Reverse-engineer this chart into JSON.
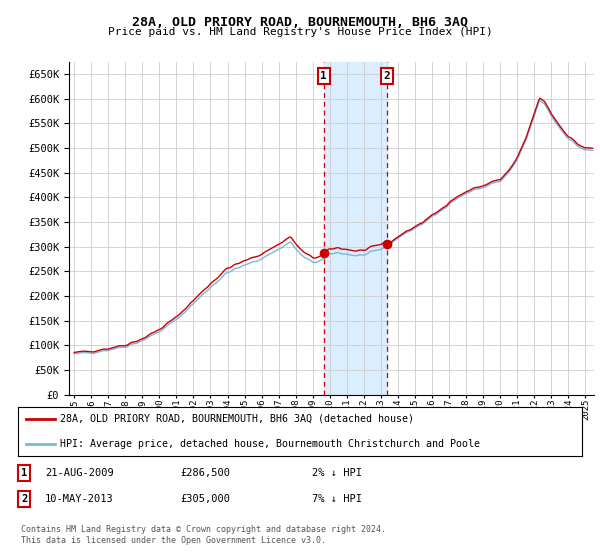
{
  "title": "28A, OLD PRIORY ROAD, BOURNEMOUTH, BH6 3AQ",
  "subtitle": "Price paid vs. HM Land Registry's House Price Index (HPI)",
  "ylim": [
    0,
    675000
  ],
  "ytick_values": [
    0,
    50000,
    100000,
    150000,
    200000,
    250000,
    300000,
    350000,
    400000,
    450000,
    500000,
    550000,
    600000,
    650000
  ],
  "sale1_date": 2009.64,
  "sale1_price": 286500,
  "sale2_date": 2013.36,
  "sale2_price": 305000,
  "legend_red": "28A, OLD PRIORY ROAD, BOURNEMOUTH, BH6 3AQ (detached house)",
  "legend_blue": "HPI: Average price, detached house, Bournemouth Christchurch and Poole",
  "footer": "Contains HM Land Registry data © Crown copyright and database right 2024.\nThis data is licensed under the Open Government Licence v3.0.",
  "hpi_color": "#7ab8d9",
  "price_color": "#cc0000",
  "bg_color": "#ffffff",
  "grid_color": "#cccccc",
  "shade_color": "#dbeeff",
  "xlim_left": 1994.7,
  "xlim_right": 2025.5
}
